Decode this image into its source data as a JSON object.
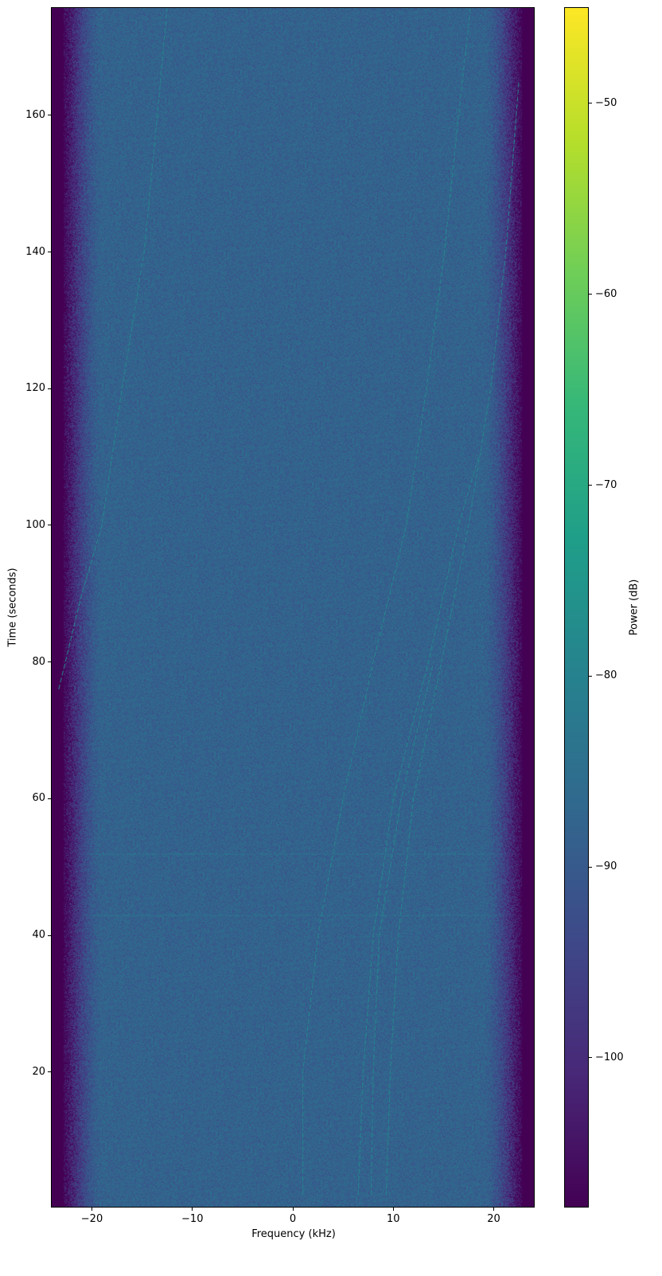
{
  "chart_data": {
    "type": "heatmap",
    "subtype": "spectrogram",
    "title": "",
    "xlabel": "Frequency (kHz)",
    "ylabel": "Time (seconds)",
    "xlim": [
      -24,
      24
    ],
    "ylim": [
      0.3,
      175.7
    ],
    "xticks": [
      -20,
      -10,
      0,
      10,
      20
    ],
    "xtick_labels": [
      "−20",
      "−10",
      "0",
      "10",
      "20"
    ],
    "yticks": [
      20,
      40,
      60,
      80,
      100,
      120,
      140,
      160
    ],
    "ytick_labels": [
      "20",
      "40",
      "60",
      "80",
      "100",
      "120",
      "140",
      "160"
    ],
    "colormap": "viridis",
    "colorbar": {
      "label": "Power (dB)",
      "clim": [
        -107.8,
        -45
      ],
      "ticks": [
        -50,
        -60,
        -70,
        -80,
        -90,
        -100
      ],
      "tick_labels": [
        "−50",
        "−60",
        "−70",
        "−80",
        "−90",
        "−100"
      ]
    },
    "noise_floor_db": -88,
    "band_edge_db": -108,
    "passband_khz": [
      -21,
      21
    ],
    "grid": false,
    "signal_traces": [
      {
        "points": [
          [
            -23.3,
            76
          ],
          [
            -21.0,
            90
          ],
          [
            -19.0,
            100
          ],
          [
            -17.0,
            120
          ],
          [
            -14.8,
            140
          ],
          [
            -13.5,
            160
          ],
          [
            -12.5,
            176
          ]
        ]
      },
      {
        "points": [
          [
            1.0,
            2
          ],
          [
            1.0,
            20
          ],
          [
            2.5,
            40
          ],
          [
            5.0,
            60
          ],
          [
            8.0,
            80
          ],
          [
            11.3,
            100
          ],
          [
            13.3,
            120
          ],
          [
            15.1,
            140
          ],
          [
            16.5,
            160
          ],
          [
            17.7,
            176
          ]
        ]
      },
      {
        "points": [
          [
            6.5,
            2
          ],
          [
            7.0,
            20
          ],
          [
            8.0,
            40
          ],
          [
            10.0,
            60
          ],
          [
            13.5,
            80
          ],
          [
            16.5,
            100
          ],
          [
            18.5,
            110
          ]
        ]
      },
      {
        "points": [
          [
            7.8,
            2
          ],
          [
            8.0,
            20
          ],
          [
            8.6,
            40
          ],
          [
            10.8,
            60
          ],
          [
            14.0,
            80
          ]
        ]
      },
      {
        "points": [
          [
            9.3,
            2
          ],
          [
            9.7,
            20
          ],
          [
            10.5,
            40
          ],
          [
            12.0,
            60
          ],
          [
            14.8,
            80
          ],
          [
            17.5,
            100
          ],
          [
            19.7,
            120
          ],
          [
            21.2,
            140
          ],
          [
            22.5,
            165
          ]
        ]
      }
    ],
    "horizontal_artifacts_s": [
      43,
      52
    ]
  }
}
